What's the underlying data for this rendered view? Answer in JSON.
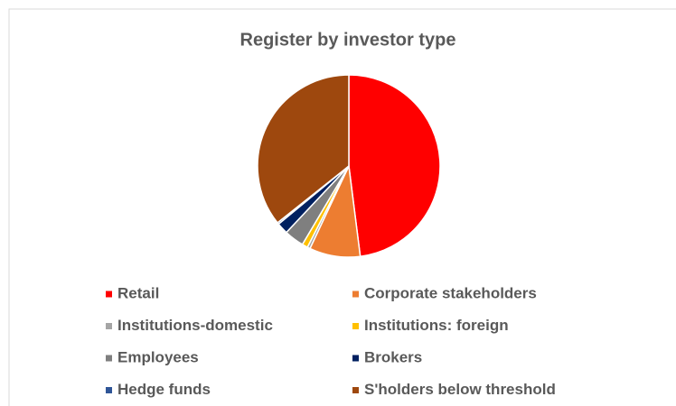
{
  "chart_data": {
    "type": "pie",
    "title": "Register by investor type",
    "categories": [
      "Retail",
      "Corporate stakeholders",
      "Institutions-domestic",
      "Institutions: foreign",
      "Employees",
      "Brokers",
      "Hedge funds",
      "S'holders below threshold"
    ],
    "values": [
      48,
      9,
      0.5,
      1,
      3.5,
      2,
      0.3,
      35.7
    ],
    "colors": [
      "#ff0000",
      "#ed7d31",
      "#a5a5a5",
      "#ffc000",
      "#7f7f7f",
      "#002060",
      "#2f5597",
      "#9e480e"
    ],
    "legend": "bottom"
  }
}
